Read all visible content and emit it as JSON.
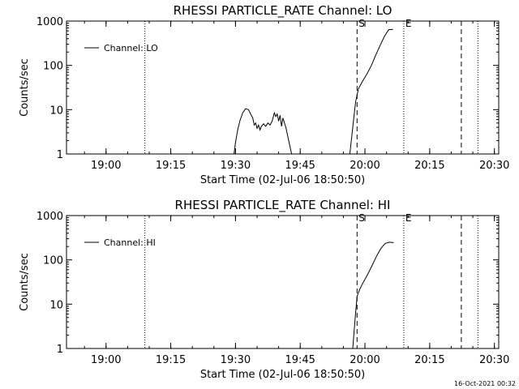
{
  "chart_data": [
    {
      "type": "line",
      "title": "RHESSI PARTICLE_RATE Channel: LO",
      "xlabel": "Start Time (02-Jul-06 18:50:50)",
      "ylabel": "Counts/sec",
      "y_scale": "log",
      "xlim": [
        "18:50:50",
        "20:31:00"
      ],
      "ylim": [
        1,
        1000
      ],
      "x_tick_labels": [
        "19:00",
        "19:15",
        "19:30",
        "19:45",
        "20:00",
        "20:15",
        "20:30"
      ],
      "y_tick_labels": [
        "1",
        "10",
        "100",
        "1000"
      ],
      "legend": {
        "placement": "top-left",
        "entries": [
          "Channel: LO"
        ]
      },
      "event_markers": [
        {
          "label": "S",
          "time": "19:58:10",
          "style": "dashed"
        },
        {
          "label": "E",
          "time": "20:09:00",
          "style": "dotted"
        }
      ],
      "reference_lines": [
        {
          "time": "19:09:00",
          "style": "dotted"
        },
        {
          "time": "20:22:20",
          "style": "dashed"
        },
        {
          "time": "20:26:10",
          "style": "dotted"
        }
      ],
      "series": [
        {
          "name": "Channel: LO",
          "points": [
            [
              "19:29:40",
              1
            ],
            [
              "19:30:00",
              1.8
            ],
            [
              "19:30:30",
              3.5
            ],
            [
              "19:31:00",
              5.5
            ],
            [
              "19:31:40",
              8.5
            ],
            [
              "19:32:20",
              10.5
            ],
            [
              "19:33:00",
              10
            ],
            [
              "19:33:30",
              8
            ],
            [
              "19:34:00",
              6.5
            ],
            [
              "19:34:20",
              4.5
            ],
            [
              "19:34:40",
              5
            ],
            [
              "19:35:00",
              3.8
            ],
            [
              "19:35:20",
              4.5
            ],
            [
              "19:35:40",
              3.5
            ],
            [
              "19:36:00",
              4.2
            ],
            [
              "19:36:30",
              4.8
            ],
            [
              "19:37:00",
              4.2
            ],
            [
              "19:37:30",
              5
            ],
            [
              "19:38:00",
              4.5
            ],
            [
              "19:38:30",
              5.5
            ],
            [
              "19:39:00",
              8.5
            ],
            [
              "19:39:20",
              7
            ],
            [
              "19:39:40",
              8
            ],
            [
              "19:40:00",
              5.5
            ],
            [
              "19:40:20",
              7.5
            ],
            [
              "19:40:40",
              4.2
            ],
            [
              "19:41:00",
              6.5
            ],
            [
              "19:41:40",
              4
            ],
            [
              "19:42:20",
              2
            ],
            [
              "19:43:00",
              1
            ],
            [
              "19:56:30",
              1
            ],
            [
              "19:57:10",
              4
            ],
            [
              "19:57:50",
              15
            ],
            [
              "19:58:30",
              30
            ],
            [
              "19:59:30",
              45
            ],
            [
              "20:00:30",
              65
            ],
            [
              "20:01:30",
              100
            ],
            [
              "20:02:30",
              170
            ],
            [
              "20:03:30",
              280
            ],
            [
              "20:04:30",
              450
            ],
            [
              "20:05:30",
              640
            ],
            [
              "20:06:30",
              650
            ]
          ]
        }
      ]
    },
    {
      "type": "line",
      "title": "RHESSI PARTICLE_RATE Channel: HI",
      "xlabel": "Start Time (02-Jul-06 18:50:50)",
      "ylabel": "Counts/sec",
      "y_scale": "log",
      "xlim": [
        "18:50:50",
        "20:31:00"
      ],
      "ylim": [
        1,
        1000
      ],
      "x_tick_labels": [
        "19:00",
        "19:15",
        "19:30",
        "19:45",
        "20:00",
        "20:15",
        "20:30"
      ],
      "y_tick_labels": [
        "1",
        "10",
        "100",
        "1000"
      ],
      "legend": {
        "placement": "top-left",
        "entries": [
          "Channel: HI"
        ]
      },
      "event_markers": [
        {
          "label": "S",
          "time": "19:58:10",
          "style": "dashed"
        },
        {
          "label": "E",
          "time": "20:09:00",
          "style": "dotted"
        }
      ],
      "reference_lines": [
        {
          "time": "19:09:00",
          "style": "dotted"
        },
        {
          "time": "20:22:20",
          "style": "dashed"
        },
        {
          "time": "20:26:10",
          "style": "dotted"
        }
      ],
      "series": [
        {
          "name": "Channel: HI",
          "points": [
            [
              "19:57:10",
              1
            ],
            [
              "19:57:40",
              4
            ],
            [
              "19:58:10",
              15
            ],
            [
              "19:58:50",
              22
            ],
            [
              "19:59:40",
              32
            ],
            [
              "20:00:40",
              48
            ],
            [
              "20:01:40",
              75
            ],
            [
              "20:02:40",
              120
            ],
            [
              "20:03:40",
              180
            ],
            [
              "20:04:40",
              235
            ],
            [
              "20:05:40",
              250
            ],
            [
              "20:06:40",
              245
            ]
          ]
        }
      ]
    }
  ],
  "footer": {
    "timestamp": "16-Oct-2021 00:32"
  }
}
